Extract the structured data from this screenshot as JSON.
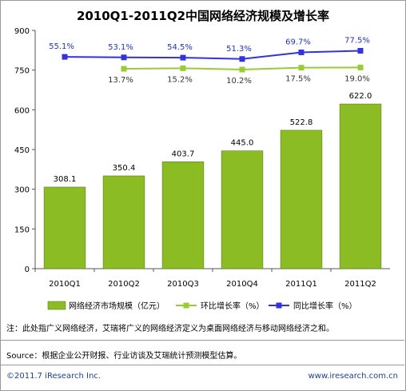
{
  "chart_data": {
    "type": "bar",
    "title": "2010Q1-2011Q2中国网络经济规模及增长率",
    "categories": [
      "2010Q1",
      "2010Q2",
      "2010Q3",
      "2010Q4",
      "2011Q1",
      "2011Q2"
    ],
    "ylim": [
      0,
      900
    ],
    "yticks": [
      "0",
      "150",
      "300",
      "450",
      "600",
      "750",
      "900"
    ],
    "grid": false,
    "legend_position": "bottom",
    "series": [
      {
        "name": "网络经济市场规模（亿元）",
        "type": "bar",
        "color": "#8cbc24",
        "values": [
          308.1,
          350.4,
          403.7,
          445.0,
          522.8,
          622.0
        ],
        "labels": [
          "308.1",
          "350.4",
          "403.7",
          "445.0",
          "522.8",
          "622.0"
        ]
      },
      {
        "name": "环比增长率（%）",
        "type": "line",
        "color": "#99cc33",
        "plot_y": [
          null,
          755,
          757,
          752,
          759,
          760
        ],
        "labels": [
          "",
          "13.7%",
          "15.2%",
          "10.2%",
          "17.5%",
          "19.0%"
        ]
      },
      {
        "name": "同比增长率（%）",
        "type": "line",
        "color": "#3333dd",
        "plot_y": [
          800,
          798,
          797,
          792,
          817,
          823
        ],
        "labels": [
          "55.1%",
          "53.1%",
          "54.5%",
          "51.3%",
          "69.7%",
          "77.5%"
        ]
      }
    ]
  },
  "notes": {
    "note": "注：此处指广义网络经济，艾瑞将广义的网络经济定义为桌面网络经济与移动网络经济之和。",
    "source": "Source：根据企业公开财报、行业访谈及艾瑞统计预测模型估算。"
  },
  "footer": {
    "copyright": "©2011.7 iResearch Inc.",
    "website": "www.iresearch.com.cn"
  }
}
